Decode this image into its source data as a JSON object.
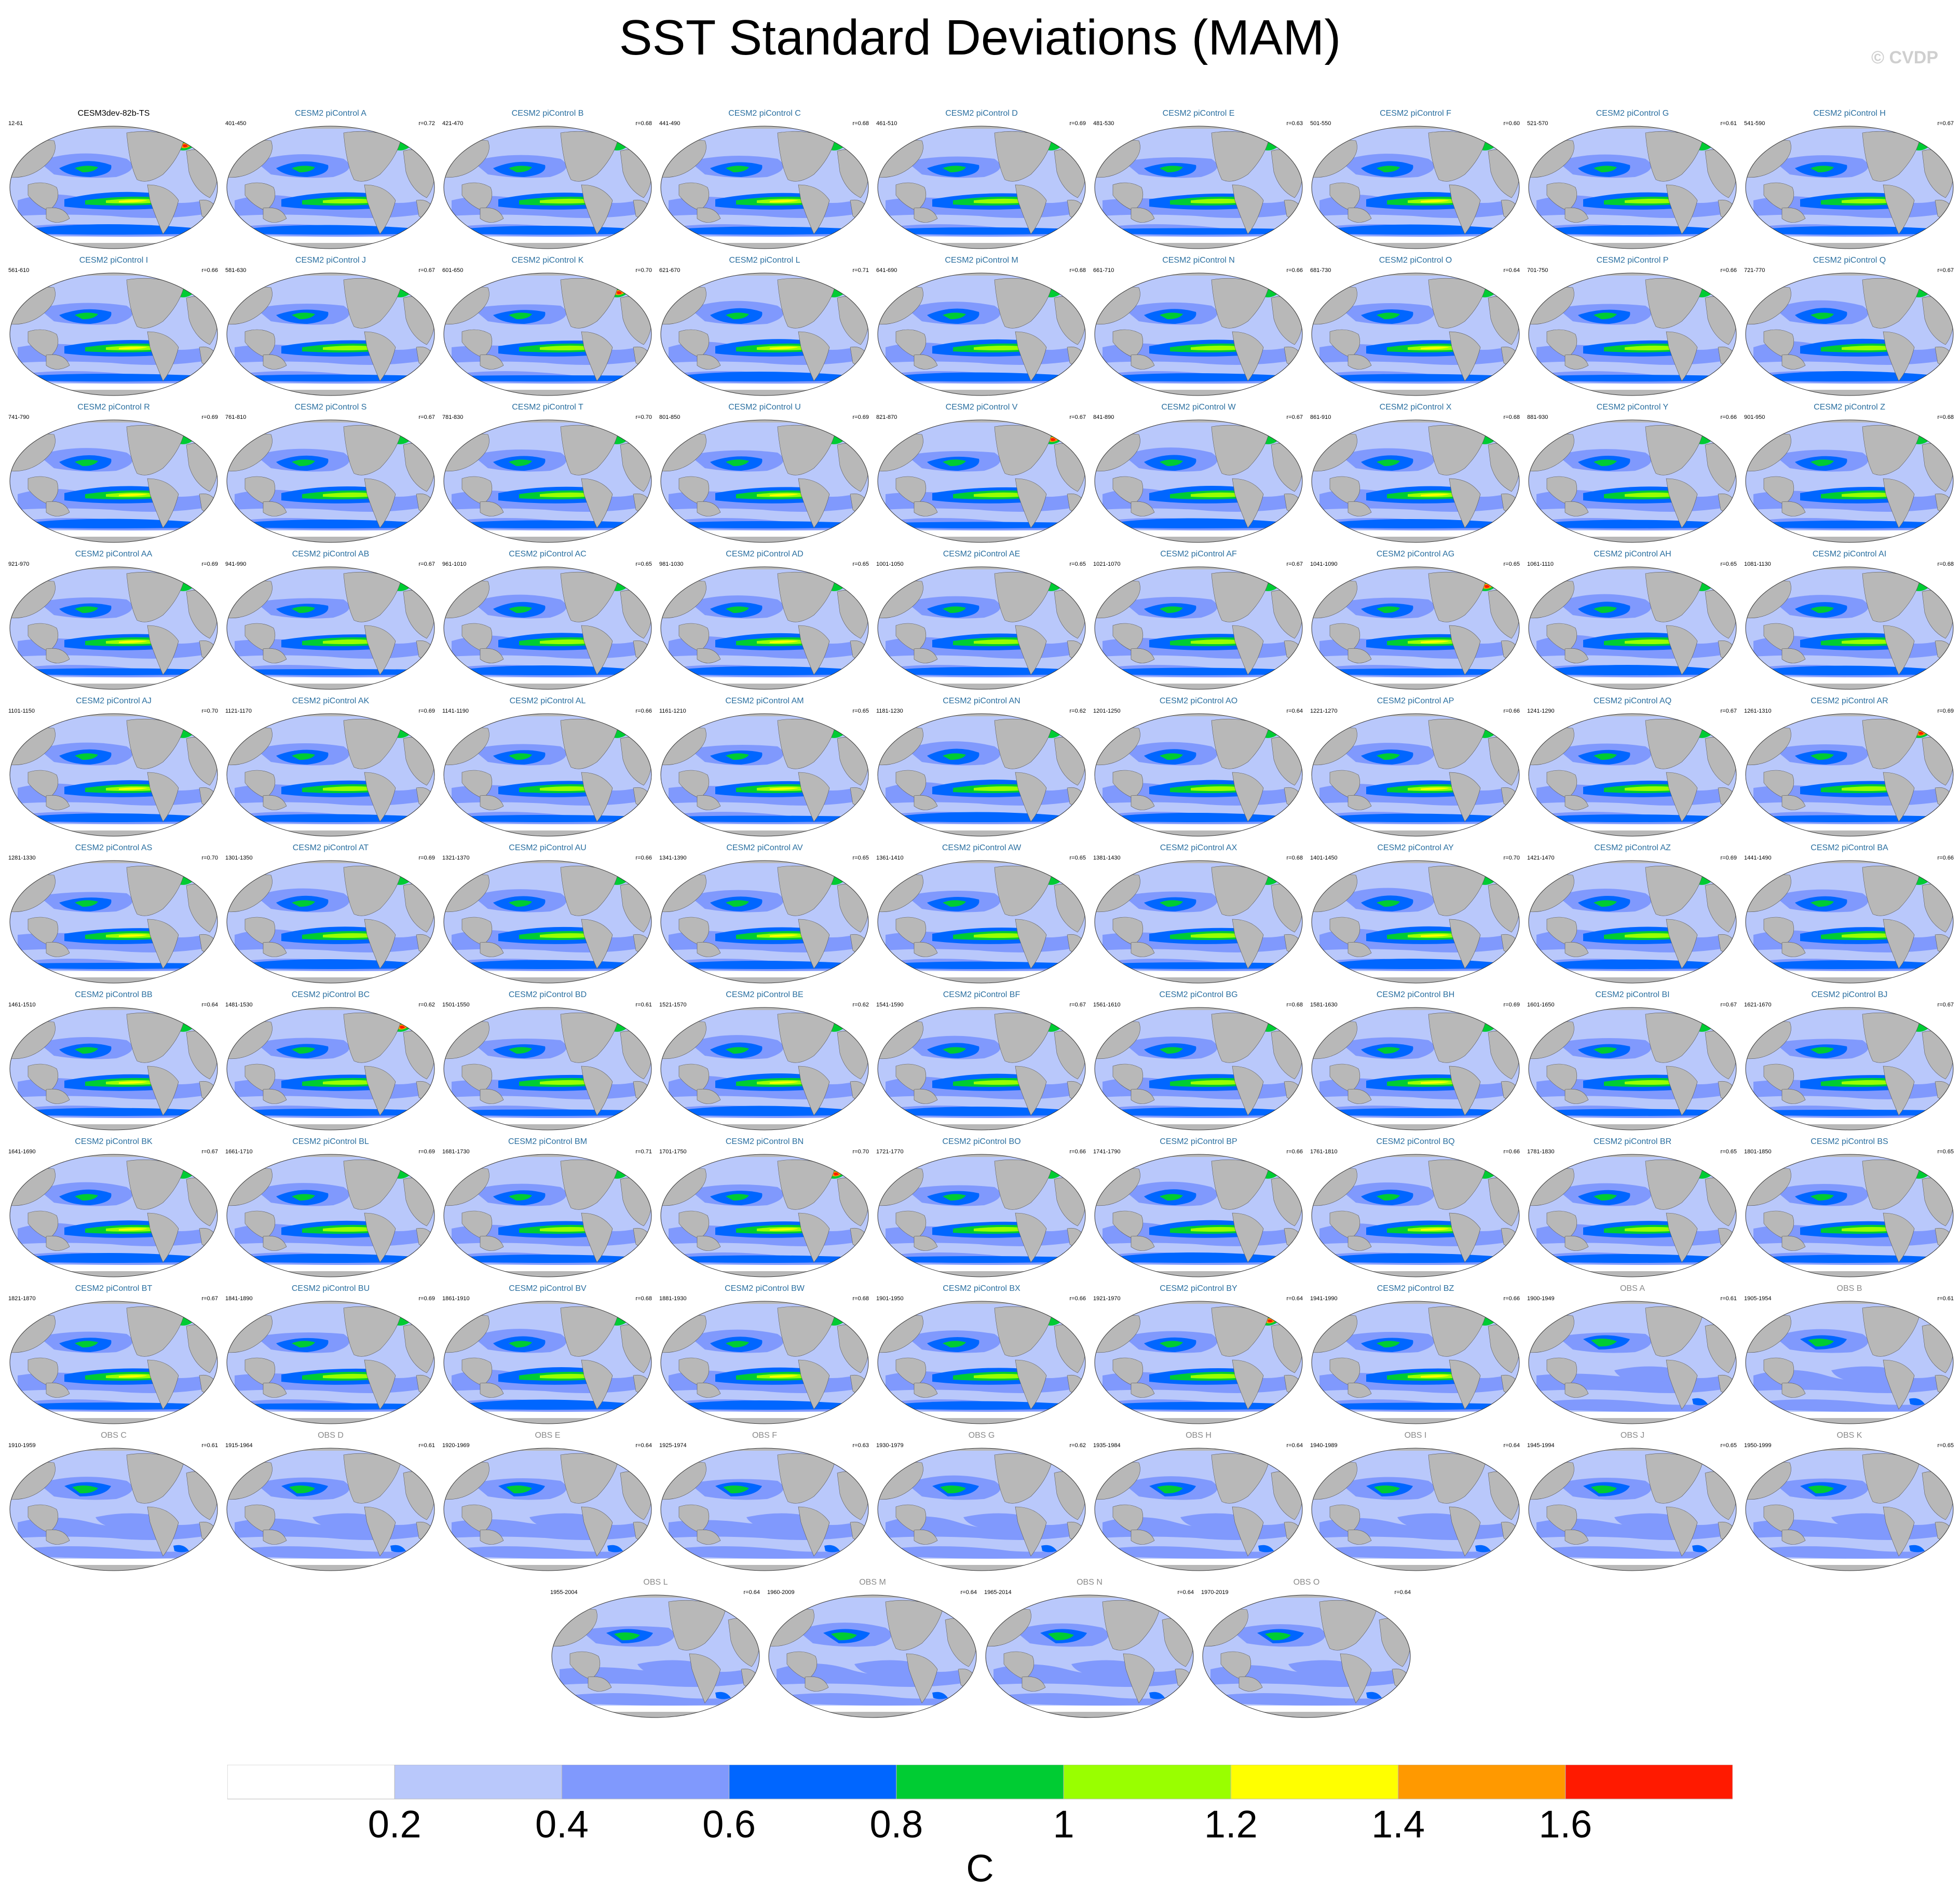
{
  "title": "SST Standard Deviations (MAM)",
  "copyright": "© CVDP",
  "chart_data": {
    "type": "heatmap",
    "title": "SST Standard Deviations (MAM)",
    "units": "C",
    "colorbar": {
      "ticks": [
        "0.2",
        "0.4",
        "0.6",
        "0.8",
        "1",
        "1.2",
        "1.4",
        "1.6"
      ],
      "levels": [
        0.2,
        0.4,
        0.6,
        0.8,
        1.0,
        1.2,
        1.4,
        1.6
      ],
      "colors": [
        "#ffffff",
        "#b9c8fb",
        "#8099fd",
        "#0066ff",
        "#00cc33",
        "#99ff00",
        "#ffff00",
        "#ff9900",
        "#ff1a00"
      ],
      "label": "C"
    },
    "panels": [
      {
        "title": "CESM3dev-82b-TS",
        "years": "12-61",
        "r": "",
        "kind": "ref"
      },
      {
        "title": "CESM2 piControl A",
        "years": "401-450",
        "r": "r=0.72",
        "kind": "model"
      },
      {
        "title": "CESM2 piControl B",
        "years": "421-470",
        "r": "r=0.68",
        "kind": "model"
      },
      {
        "title": "CESM2 piControl C",
        "years": "441-490",
        "r": "r=0.68",
        "kind": "model"
      },
      {
        "title": "CESM2 piControl D",
        "years": "461-510",
        "r": "r=0.69",
        "kind": "model"
      },
      {
        "title": "CESM2 piControl E",
        "years": "481-530",
        "r": "r=0.63",
        "kind": "model"
      },
      {
        "title": "CESM2 piControl F",
        "years": "501-550",
        "r": "r=0.60",
        "kind": "model"
      },
      {
        "title": "CESM2 piControl G",
        "years": "521-570",
        "r": "r=0.61",
        "kind": "model"
      },
      {
        "title": "CESM2 piControl H",
        "years": "541-590",
        "r": "r=0.67",
        "kind": "model"
      },
      {
        "title": "CESM2 piControl I",
        "years": "561-610",
        "r": "r=0.66",
        "kind": "model"
      },
      {
        "title": "CESM2 piControl J",
        "years": "581-630",
        "r": "r=0.67",
        "kind": "model"
      },
      {
        "title": "CESM2 piControl K",
        "years": "601-650",
        "r": "r=0.70",
        "kind": "model"
      },
      {
        "title": "CESM2 piControl L",
        "years": "621-670",
        "r": "r=0.71",
        "kind": "model"
      },
      {
        "title": "CESM2 piControl M",
        "years": "641-690",
        "r": "r=0.68",
        "kind": "model"
      },
      {
        "title": "CESM2 piControl N",
        "years": "661-710",
        "r": "r=0.66",
        "kind": "model"
      },
      {
        "title": "CESM2 piControl O",
        "years": "681-730",
        "r": "r=0.64",
        "kind": "model"
      },
      {
        "title": "CESM2 piControl P",
        "years": "701-750",
        "r": "r=0.66",
        "kind": "model"
      },
      {
        "title": "CESM2 piControl Q",
        "years": "721-770",
        "r": "r=0.67",
        "kind": "model"
      },
      {
        "title": "CESM2 piControl R",
        "years": "741-790",
        "r": "r=0.69",
        "kind": "model"
      },
      {
        "title": "CESM2 piControl S",
        "years": "761-810",
        "r": "r=0.67",
        "kind": "model"
      },
      {
        "title": "CESM2 piControl T",
        "years": "781-830",
        "r": "r=0.70",
        "kind": "model"
      },
      {
        "title": "CESM2 piControl U",
        "years": "801-850",
        "r": "r=0.69",
        "kind": "model"
      },
      {
        "title": "CESM2 piControl V",
        "years": "821-870",
        "r": "r=0.67",
        "kind": "model"
      },
      {
        "title": "CESM2 piControl W",
        "years": "841-890",
        "r": "r=0.67",
        "kind": "model"
      },
      {
        "title": "CESM2 piControl X",
        "years": "861-910",
        "r": "r=0.68",
        "kind": "model"
      },
      {
        "title": "CESM2 piControl Y",
        "years": "881-930",
        "r": "r=0.66",
        "kind": "model"
      },
      {
        "title": "CESM2 piControl Z",
        "years": "901-950",
        "r": "r=0.68",
        "kind": "model"
      },
      {
        "title": "CESM2 piControl AA",
        "years": "921-970",
        "r": "r=0.69",
        "kind": "model"
      },
      {
        "title": "CESM2 piControl AB",
        "years": "941-990",
        "r": "r=0.67",
        "kind": "model"
      },
      {
        "title": "CESM2 piControl AC",
        "years": "961-1010",
        "r": "r=0.65",
        "kind": "model"
      },
      {
        "title": "CESM2 piControl AD",
        "years": "981-1030",
        "r": "r=0.65",
        "kind": "model"
      },
      {
        "title": "CESM2 piControl AE",
        "years": "1001-1050",
        "r": "r=0.65",
        "kind": "model"
      },
      {
        "title": "CESM2 piControl AF",
        "years": "1021-1070",
        "r": "r=0.67",
        "kind": "model"
      },
      {
        "title": "CESM2 piControl AG",
        "years": "1041-1090",
        "r": "r=0.65",
        "kind": "model"
      },
      {
        "title": "CESM2 piControl AH",
        "years": "1061-1110",
        "r": "r=0.65",
        "kind": "model"
      },
      {
        "title": "CESM2 piControl AI",
        "years": "1081-1130",
        "r": "r=0.68",
        "kind": "model"
      },
      {
        "title": "CESM2 piControl AJ",
        "years": "1101-1150",
        "r": "r=0.70",
        "kind": "model"
      },
      {
        "title": "CESM2 piControl AK",
        "years": "1121-1170",
        "r": "r=0.69",
        "kind": "model"
      },
      {
        "title": "CESM2 piControl AL",
        "years": "1141-1190",
        "r": "r=0.66",
        "kind": "model"
      },
      {
        "title": "CESM2 piControl AM",
        "years": "1161-1210",
        "r": "r=0.65",
        "kind": "model"
      },
      {
        "title": "CESM2 piControl AN",
        "years": "1181-1230",
        "r": "r=0.62",
        "kind": "model"
      },
      {
        "title": "CESM2 piControl AO",
        "years": "1201-1250",
        "r": "r=0.64",
        "kind": "model"
      },
      {
        "title": "CESM2 piControl AP",
        "years": "1221-1270",
        "r": "r=0.66",
        "kind": "model"
      },
      {
        "title": "CESM2 piControl AQ",
        "years": "1241-1290",
        "r": "r=0.67",
        "kind": "model"
      },
      {
        "title": "CESM2 piControl AR",
        "years": "1261-1310",
        "r": "r=0.69",
        "kind": "model"
      },
      {
        "title": "CESM2 piControl AS",
        "years": "1281-1330",
        "r": "r=0.70",
        "kind": "model"
      },
      {
        "title": "CESM2 piControl AT",
        "years": "1301-1350",
        "r": "r=0.69",
        "kind": "model"
      },
      {
        "title": "CESM2 piControl AU",
        "years": "1321-1370",
        "r": "r=0.66",
        "kind": "model"
      },
      {
        "title": "CESM2 piControl AV",
        "years": "1341-1390",
        "r": "r=0.65",
        "kind": "model"
      },
      {
        "title": "CESM2 piControl AW",
        "years": "1361-1410",
        "r": "r=0.65",
        "kind": "model"
      },
      {
        "title": "CESM2 piControl AX",
        "years": "1381-1430",
        "r": "r=0.68",
        "kind": "model"
      },
      {
        "title": "CESM2 piControl AY",
        "years": "1401-1450",
        "r": "r=0.70",
        "kind": "model"
      },
      {
        "title": "CESM2 piControl AZ",
        "years": "1421-1470",
        "r": "r=0.69",
        "kind": "model"
      },
      {
        "title": "CESM2 piControl BA",
        "years": "1441-1490",
        "r": "r=0.66",
        "kind": "model"
      },
      {
        "title": "CESM2 piControl BB",
        "years": "1461-1510",
        "r": "r=0.64",
        "kind": "model"
      },
      {
        "title": "CESM2 piControl BC",
        "years": "1481-1530",
        "r": "r=0.62",
        "kind": "model"
      },
      {
        "title": "CESM2 piControl BD",
        "years": "1501-1550",
        "r": "r=0.61",
        "kind": "model"
      },
      {
        "title": "CESM2 piControl BE",
        "years": "1521-1570",
        "r": "r=0.62",
        "kind": "model"
      },
      {
        "title": "CESM2 piControl BF",
        "years": "1541-1590",
        "r": "r=0.67",
        "kind": "model"
      },
      {
        "title": "CESM2 piControl BG",
        "years": "1561-1610",
        "r": "r=0.68",
        "kind": "model"
      },
      {
        "title": "CESM2 piControl BH",
        "years": "1581-1630",
        "r": "r=0.69",
        "kind": "model"
      },
      {
        "title": "CESM2 piControl BI",
        "years": "1601-1650",
        "r": "r=0.67",
        "kind": "model"
      },
      {
        "title": "CESM2 piControl BJ",
        "years": "1621-1670",
        "r": "r=0.67",
        "kind": "model"
      },
      {
        "title": "CESM2 piControl BK",
        "years": "1641-1690",
        "r": "r=0.67",
        "kind": "model"
      },
      {
        "title": "CESM2 piControl BL",
        "years": "1661-1710",
        "r": "r=0.69",
        "kind": "model"
      },
      {
        "title": "CESM2 piControl BM",
        "years": "1681-1730",
        "r": "r=0.71",
        "kind": "model"
      },
      {
        "title": "CESM2 piControl BN",
        "years": "1701-1750",
        "r": "r=0.70",
        "kind": "model"
      },
      {
        "title": "CESM2 piControl BO",
        "years": "1721-1770",
        "r": "r=0.66",
        "kind": "model"
      },
      {
        "title": "CESM2 piControl BP",
        "years": "1741-1790",
        "r": "r=0.66",
        "kind": "model"
      },
      {
        "title": "CESM2 piControl BQ",
        "years": "1761-1810",
        "r": "r=0.66",
        "kind": "model"
      },
      {
        "title": "CESM2 piControl BR",
        "years": "1781-1830",
        "r": "r=0.65",
        "kind": "model"
      },
      {
        "title": "CESM2 piControl BS",
        "years": "1801-1850",
        "r": "r=0.65",
        "kind": "model"
      },
      {
        "title": "CESM2 piControl BT",
        "years": "1821-1870",
        "r": "r=0.67",
        "kind": "model"
      },
      {
        "title": "CESM2 piControl BU",
        "years": "1841-1890",
        "r": "r=0.69",
        "kind": "model"
      },
      {
        "title": "CESM2 piControl BV",
        "years": "1861-1910",
        "r": "r=0.68",
        "kind": "model"
      },
      {
        "title": "CESM2 piControl BW",
        "years": "1881-1930",
        "r": "r=0.68",
        "kind": "model"
      },
      {
        "title": "CESM2 piControl BX",
        "years": "1901-1950",
        "r": "r=0.66",
        "kind": "model"
      },
      {
        "title": "CESM2 piControl BY",
        "years": "1921-1970",
        "r": "r=0.64",
        "kind": "model"
      },
      {
        "title": "CESM2 piControl BZ",
        "years": "1941-1990",
        "r": "r=0.66",
        "kind": "model"
      },
      {
        "title": "OBS A",
        "years": "1900-1949",
        "r": "r=0.61",
        "kind": "obs"
      },
      {
        "title": "OBS B",
        "years": "1905-1954",
        "r": "r=0.61",
        "kind": "obs"
      },
      {
        "title": "OBS C",
        "years": "1910-1959",
        "r": "r=0.61",
        "kind": "obs"
      },
      {
        "title": "OBS D",
        "years": "1915-1964",
        "r": "r=0.61",
        "kind": "obs"
      },
      {
        "title": "OBS E",
        "years": "1920-1969",
        "r": "r=0.64",
        "kind": "obs"
      },
      {
        "title": "OBS F",
        "years": "1925-1974",
        "r": "r=0.63",
        "kind": "obs"
      },
      {
        "title": "OBS G",
        "years": "1930-1979",
        "r": "r=0.62",
        "kind": "obs"
      },
      {
        "title": "OBS H",
        "years": "1935-1984",
        "r": "r=0.64",
        "kind": "obs"
      },
      {
        "title": "OBS I",
        "years": "1940-1989",
        "r": "r=0.64",
        "kind": "obs"
      },
      {
        "title": "OBS J",
        "years": "1945-1994",
        "r": "r=0.65",
        "kind": "obs"
      },
      {
        "title": "OBS K",
        "years": "1950-1999",
        "r": "r=0.65",
        "kind": "obs"
      },
      {
        "title": "OBS L",
        "years": "1955-2004",
        "r": "r=0.64",
        "kind": "obs"
      },
      {
        "title": "OBS M",
        "years": "1960-2009",
        "r": "r=0.64",
        "kind": "obs"
      },
      {
        "title": "OBS N",
        "years": "1965-2014",
        "r": "r=0.64",
        "kind": "obs"
      },
      {
        "title": "OBS O",
        "years": "1970-2019",
        "r": "r=0.64",
        "kind": "obs"
      }
    ]
  }
}
